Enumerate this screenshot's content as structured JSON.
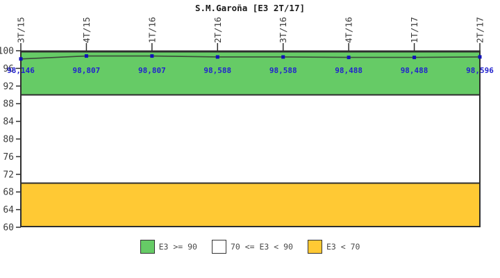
{
  "title": "S.M.Garoña [E3 2T/17]",
  "chart_data": {
    "type": "line",
    "title": "S.M.Garoña [E3 2T/17]",
    "categories": [
      "3T/15",
      "4T/15",
      "1T/16",
      "2T/16",
      "3T/16",
      "4T/16",
      "1T/17",
      "2T/17"
    ],
    "series": [
      {
        "name": "E3",
        "values": [
          98.146,
          98.807,
          98.807,
          98.588,
          98.588,
          98.488,
          98.488,
          98.596
        ]
      }
    ],
    "point_labels": [
      "98,146",
      "98,807",
      "98,807",
      "98,588",
      "98,588",
      "98,488",
      "98,488",
      "98,596"
    ],
    "ylim": [
      60,
      100
    ],
    "yticks": [
      100,
      96,
      92,
      88,
      84,
      80,
      76,
      72,
      68,
      64,
      60
    ],
    "grid": false,
    "x_axis_position": "top",
    "bands": [
      {
        "label": "E3 >= 90",
        "from": 90,
        "to": 100,
        "color": "#66CB66"
      },
      {
        "label": "70 <= E3 < 90",
        "from": 70,
        "to": 90,
        "color": "#FFFFFF"
      },
      {
        "label": "E3 < 70",
        "from": 60,
        "to": 70,
        "color": "#FFC934"
      }
    ],
    "legend": {
      "position": "bottom",
      "items": [
        {
          "label": "E3 >= 90",
          "color": "#66CB66"
        },
        {
          "label": "70 <= E3 < 90",
          "color": "#FFFFFF"
        },
        {
          "label": "E3 < 70",
          "color": "#FFC934"
        }
      ]
    },
    "colors": {
      "line": "#3A4A3A",
      "marker": "#1111B8",
      "data_label": "#2222CE",
      "axis": "#2E2E2E",
      "tick_label": "#3A3A3A",
      "legend_text": "#4A4A4A"
    }
  }
}
